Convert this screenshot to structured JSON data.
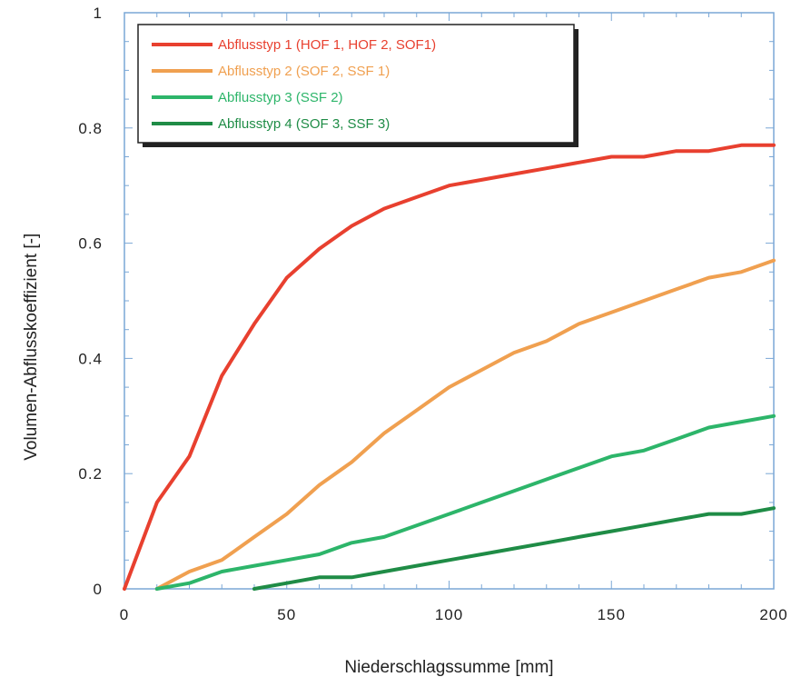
{
  "chart_data": {
    "type": "line",
    "xlabel": "Niederschlagssumme  [mm]",
    "ylabel": "Volumen-Abflusskoeffizient  [-]",
    "xlim": [
      0,
      200
    ],
    "ylim": [
      0,
      1
    ],
    "x_ticks": [
      "0",
      "50",
      "100",
      "150",
      "200"
    ],
    "y_ticks": [
      "0",
      "0.2",
      "0.4",
      "0.6",
      "0.8",
      "1"
    ],
    "grid": false,
    "legend_position": "top-left",
    "series": [
      {
        "name": "Abflusstyp 1 (HOF 1, HOF 2, SOF1)",
        "color": "#e8402f",
        "x": [
          0,
          10,
          20,
          30,
          40,
          50,
          60,
          70,
          80,
          90,
          100,
          110,
          120,
          130,
          140,
          150,
          160,
          170,
          180,
          190,
          200
        ],
        "y": [
          0,
          0.15,
          0.23,
          0.37,
          0.46,
          0.54,
          0.59,
          0.63,
          0.66,
          0.68,
          0.7,
          0.71,
          0.72,
          0.73,
          0.74,
          0.75,
          0.75,
          0.76,
          0.76,
          0.77,
          0.77
        ]
      },
      {
        "name": "Abflusstyp 2 (SOF 2, SSF 1)",
        "color": "#f0a050",
        "x": [
          10,
          20,
          30,
          40,
          50,
          60,
          70,
          80,
          90,
          100,
          110,
          120,
          130,
          140,
          150,
          160,
          170,
          180,
          190,
          200
        ],
        "y": [
          0,
          0.03,
          0.05,
          0.09,
          0.13,
          0.18,
          0.22,
          0.27,
          0.31,
          0.35,
          0.38,
          0.41,
          0.43,
          0.46,
          0.48,
          0.5,
          0.52,
          0.54,
          0.55,
          0.57
        ]
      },
      {
        "name": "Abflusstyp 3 (SSF 2)",
        "color": "#2db56a",
        "x": [
          10,
          20,
          30,
          40,
          50,
          60,
          70,
          80,
          90,
          100,
          110,
          120,
          130,
          140,
          150,
          160,
          170,
          180,
          190,
          200
        ],
        "y": [
          0,
          0.01,
          0.03,
          0.04,
          0.05,
          0.06,
          0.08,
          0.09,
          0.11,
          0.13,
          0.15,
          0.17,
          0.19,
          0.21,
          0.23,
          0.24,
          0.26,
          0.28,
          0.29,
          0.3
        ]
      },
      {
        "name": "Abflusstyp 4 (SOF 3, SSF 3)",
        "color": "#1f8c46",
        "x": [
          40,
          50,
          60,
          70,
          80,
          90,
          100,
          110,
          120,
          130,
          140,
          150,
          160,
          170,
          180,
          190,
          200
        ],
        "y": [
          0,
          0.01,
          0.02,
          0.02,
          0.03,
          0.04,
          0.05,
          0.06,
          0.07,
          0.08,
          0.09,
          0.1,
          0.11,
          0.12,
          0.13,
          0.13,
          0.14
        ]
      }
    ]
  }
}
